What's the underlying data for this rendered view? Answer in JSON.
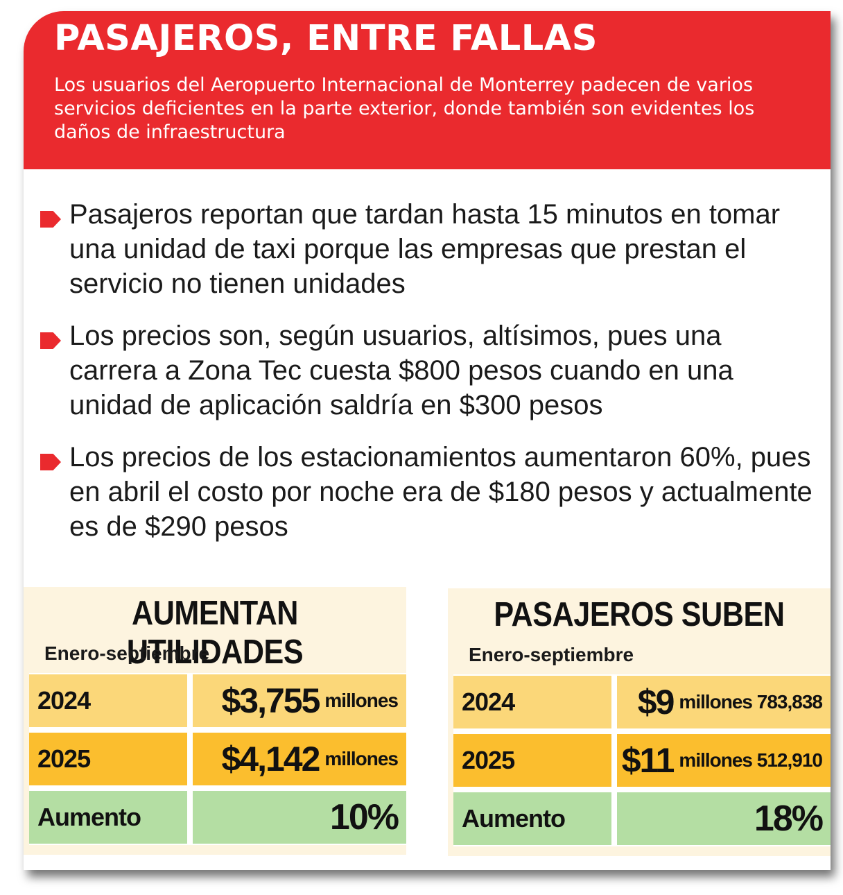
{
  "header": {
    "title": "PASAJEROS, ENTRE FALLAS",
    "subtitle": "Los usuarios del Aeropuerto Internacional de Monterrey padecen de varios servicios deficientes en la parte exterior, donde también son evidentes los daños de infraestructura"
  },
  "bullets": [
    "Pasajeros reportan que tardan hasta 15 minutos en tomar una unidad de taxi porque las empresas que prestan el servicio no tienen unidades",
    "Los precios son, según usuarios, altísimos, pues una carrera a Zona Tec cuesta $800 pesos cuando en una unidad de aplicación saldría en $300 pesos",
    "Los precios de los estacionamientos aumentaron 60%, pues en abril el costo por noche era de $180 pesos y actualmente es de $290 pesos"
  ],
  "utilidades": {
    "title": "AUMENTAN UTILIDADES",
    "subtitle": "Enero-septiembre",
    "rows": [
      {
        "label": "2024",
        "big": "$3,755",
        "rest": "millones"
      },
      {
        "label": "2025",
        "big": "$4,142",
        "rest": "millones"
      },
      {
        "label": "Aumento",
        "value": "10%"
      }
    ]
  },
  "pasajeros": {
    "title": "PASAJEROS SUBEN",
    "subtitle": "Enero-septiembre",
    "rows": [
      {
        "label": "2024",
        "big": "$9",
        "rest": "millones 783,838"
      },
      {
        "label": "2025",
        "big": "$11",
        "rest": "millones 512,910"
      },
      {
        "label": "Aumento",
        "value": "18%"
      }
    ]
  },
  "colors": {
    "header_red": "#ea2a2e",
    "row_2024": "#fbd779",
    "row_2025": "#fbbe2e",
    "row_aumento": "#b4dea3",
    "panel_bg": "#fdf4df"
  }
}
